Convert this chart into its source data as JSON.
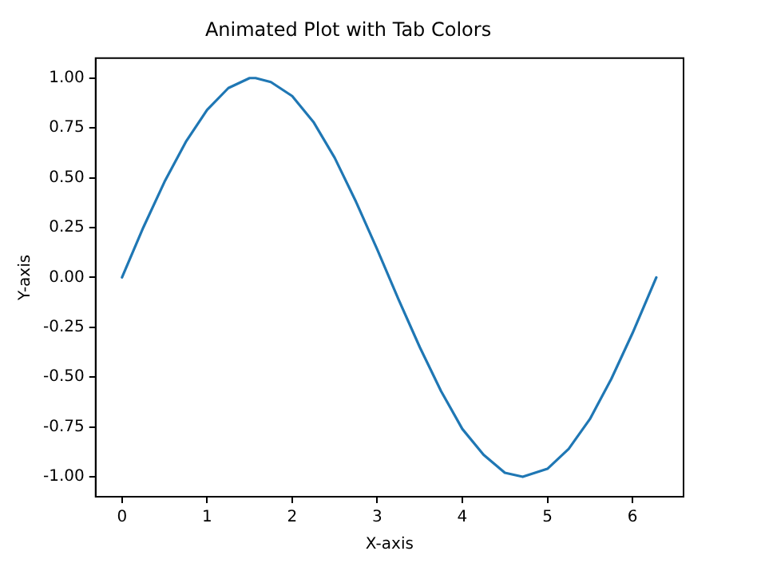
{
  "chart_data": {
    "type": "line",
    "title": "Animated Plot with Tab Colors",
    "xlabel": "X-axis",
    "ylabel": "Y-axis",
    "x": [
      0,
      0.25,
      0.5,
      0.75,
      1.0,
      1.25,
      1.5,
      1.57,
      1.75,
      2.0,
      2.25,
      2.5,
      2.75,
      3.0,
      3.25,
      3.5,
      3.75,
      4.0,
      4.25,
      4.5,
      4.71,
      5.0,
      5.25,
      5.5,
      5.75,
      6.0,
      6.28
    ],
    "series": [
      {
        "color": "#1f77b4",
        "values": [
          0,
          0.25,
          0.48,
          0.68,
          0.84,
          0.95,
          1.0,
          1.0,
          0.98,
          0.91,
          0.78,
          0.6,
          0.38,
          0.14,
          -0.11,
          -0.35,
          -0.57,
          -0.76,
          -0.89,
          -0.98,
          -1.0,
          -0.96,
          -0.86,
          -0.71,
          -0.51,
          -0.28,
          0
        ]
      }
    ],
    "xlim": [
      -0.31,
      6.6
    ],
    "xticks": [
      0,
      1,
      2,
      3,
      4,
      5,
      6
    ],
    "ylim": [
      -1.1,
      1.1
    ],
    "yticks": [
      {
        "value": -1,
        "label": "-1.00"
      },
      {
        "value": -0.75,
        "label": "-0.75"
      },
      {
        "value": -0.5,
        "label": "-0.50"
      },
      {
        "value": -0.25,
        "label": "-0.25"
      },
      {
        "value": 0,
        "label": "0.00"
      },
      {
        "value": 0.25,
        "label": "0.25"
      },
      {
        "value": 0.5,
        "label": "0.50"
      },
      {
        "value": 0.75,
        "label": "0.75"
      },
      {
        "value": 1,
        "label": "1.00"
      }
    ],
    "grid": false,
    "legend": false,
    "marker": "none",
    "line_style": "solid"
  }
}
